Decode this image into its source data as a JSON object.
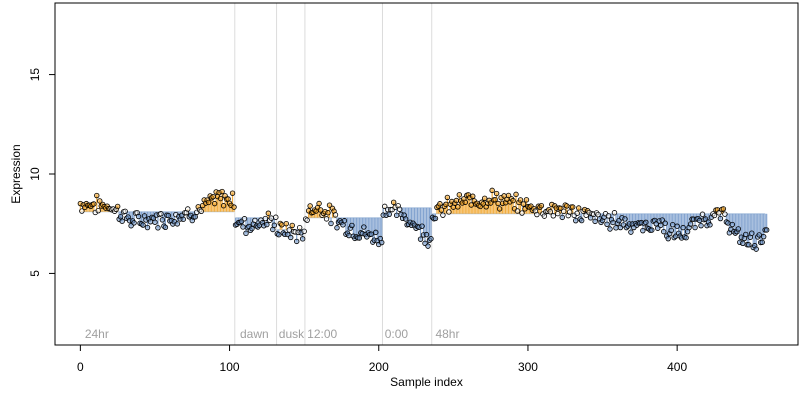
{
  "chart_data": {
    "type": "scatter",
    "title": "",
    "xlabel": "Sample index",
    "ylabel": "Expression",
    "xlim": [
      -17,
      481
    ],
    "ylim": [
      1.4,
      18.6
    ],
    "xticks": [
      0,
      100,
      200,
      300,
      400
    ],
    "yticks": [
      5,
      10,
      15
    ],
    "grid": false,
    "legend": "none",
    "colors": {
      "axis": "#000000",
      "point_stroke": "#000000",
      "baseline": "#b8cce4",
      "below": "#6f95c8",
      "above": "#f0a020",
      "divider": "#dcdcdc",
      "annotation": "#a0a0a0"
    },
    "segment_starts": [
      0,
      104,
      132,
      151,
      203,
      236
    ],
    "segment_labels": [
      {
        "x": 3,
        "text": "24hr"
      },
      {
        "x": 107,
        "text": "dawn"
      },
      {
        "x": 133,
        "text": "dusk"
      },
      {
        "x": 152,
        "text": "12:00"
      },
      {
        "x": 204,
        "text": "0:00"
      },
      {
        "x": 238,
        "text": "48hr"
      }
    ],
    "segment_baselines": [
      {
        "from": 0,
        "to": 104,
        "y": 8.1
      },
      {
        "from": 104,
        "to": 132,
        "y": 7.8
      },
      {
        "from": 132,
        "to": 151,
        "y": 7.2
      },
      {
        "from": 151,
        "to": 203,
        "y": 7.8
      },
      {
        "from": 203,
        "to": 236,
        "y": 8.3
      },
      {
        "from": 236,
        "to": 460,
        "y": 8.0
      }
    ],
    "profile": [
      [
        0,
        8.5
      ],
      [
        20,
        8.4
      ],
      [
        35,
        7.6
      ],
      [
        45,
        7.7
      ],
      [
        60,
        7.8
      ],
      [
        80,
        8.2
      ],
      [
        92,
        8.8
      ],
      [
        103,
        8.7
      ],
      [
        104,
        7.6
      ],
      [
        112,
        7.4
      ],
      [
        120,
        7.6
      ],
      [
        131,
        7.6
      ],
      [
        132,
        7.2
      ],
      [
        142,
        7.1
      ],
      [
        150,
        6.9
      ],
      [
        151,
        8.0
      ],
      [
        160,
        8.4
      ],
      [
        170,
        7.8
      ],
      [
        180,
        7.3
      ],
      [
        190,
        7.0
      ],
      [
        202,
        6.7
      ],
      [
        203,
        8.3
      ],
      [
        212,
        8.1
      ],
      [
        222,
        7.6
      ],
      [
        230,
        7.0
      ],
      [
        235,
        6.8
      ],
      [
        236,
        8.0
      ],
      [
        250,
        8.5
      ],
      [
        265,
        8.7
      ],
      [
        275,
        8.8
      ],
      [
        290,
        8.5
      ],
      [
        305,
        8.3
      ],
      [
        320,
        8.2
      ],
      [
        335,
        8.0
      ],
      [
        350,
        7.7
      ],
      [
        365,
        7.6
      ],
      [
        378,
        7.3
      ],
      [
        388,
        7.6
      ],
      [
        395,
        7.0
      ],
      [
        405,
        7.0
      ],
      [
        415,
        7.7
      ],
      [
        425,
        7.9
      ],
      [
        432,
        7.9
      ],
      [
        440,
        6.8
      ],
      [
        452,
        6.6
      ],
      [
        460,
        7.0
      ]
    ],
    "n_points": 461
  }
}
